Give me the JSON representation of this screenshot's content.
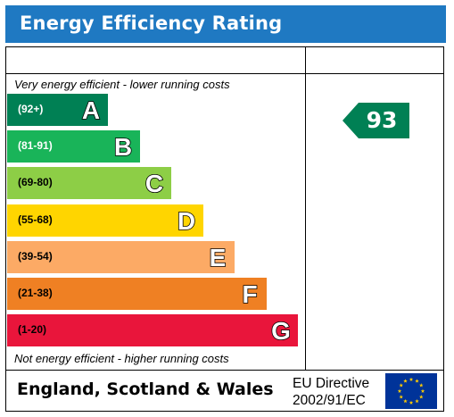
{
  "title": "Energy Efficiency Rating",
  "top_note": "Very energy efficient - lower running costs",
  "bottom_note": "Not energy efficient - higher running costs",
  "bands": [
    {
      "range": "(92+)",
      "letter": "A",
      "color": "#008054",
      "range_color": "#ffffff"
    },
    {
      "range": "(81-91)",
      "letter": "B",
      "color": "#19b459",
      "range_color": "#ffffff"
    },
    {
      "range": "(69-80)",
      "letter": "C",
      "color": "#8dce46",
      "range_color": "#000000"
    },
    {
      "range": "(55-68)",
      "letter": "D",
      "color": "#ffd500",
      "range_color": "#000000"
    },
    {
      "range": "(39-54)",
      "letter": "E",
      "color": "#fcaa65",
      "range_color": "#000000"
    },
    {
      "range": "(21-38)",
      "letter": "F",
      "color": "#ef8023",
      "range_color": "#000000"
    },
    {
      "range": "(1-20)",
      "letter": "G",
      "color": "#e9153b",
      "range_color": "#000000"
    }
  ],
  "current_rating": {
    "value": "93",
    "band": "A",
    "color": "#008054"
  },
  "footer": {
    "country": "England, Scotland & Wales",
    "directive_line1": "EU Directive",
    "directive_line2": "2002/91/EC"
  },
  "colors": {
    "title_bar": "#1f79c2",
    "eu_flag_blue": "#003399",
    "eu_flag_stars": "#ffcc00"
  },
  "icons": {
    "eu_flag": "eu-flag-icon",
    "rating_arrow": "arrow-left-icon"
  }
}
